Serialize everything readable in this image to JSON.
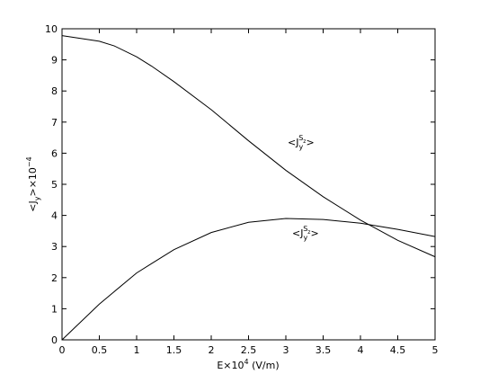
{
  "chart_data": {
    "type": "line",
    "x": [
      0,
      0.5,
      0.7,
      1,
      1.2,
      1.5,
      2,
      2.5,
      3,
      3.5,
      4,
      4.5,
      5
    ],
    "series": [
      {
        "color": "#000000",
        "values": [
          9.78,
          9.6,
          9.45,
          9.1,
          8.8,
          8.3,
          7.4,
          6.4,
          5.45,
          4.6,
          3.85,
          3.2,
          2.67
        ]
      },
      {
        "color": "#000000",
        "values": [
          0,
          1.15,
          1.55,
          2.15,
          2.45,
          2.9,
          3.45,
          3.78,
          3.9,
          3.87,
          3.75,
          3.55,
          3.32
        ]
      }
    ],
    "xlabel": {
      "base": "E×10",
      "sup": "4",
      "rest": " (V/m)"
    },
    "ylabel": {
      "base": "<J",
      "sub": "y",
      "rest": ">×10",
      "sup": "−4"
    },
    "annotations": [
      {
        "base": "<J",
        "sub": "y",
        "sup": "S",
        "supsub": "z",
        "end": ">"
      },
      {
        "base": "<J",
        "sub": "y",
        "sup": "S",
        "supsub": "z",
        "end": ">"
      }
    ],
    "xlim": [
      0,
      5
    ],
    "ylim": [
      0,
      10
    ],
    "xticks": [
      0,
      0.5,
      1,
      1.5,
      2,
      2.5,
      3,
      3.5,
      4,
      4.5,
      5
    ],
    "yticks": [
      0,
      1,
      2,
      3,
      4,
      5,
      6,
      7,
      8,
      9,
      10
    ]
  }
}
